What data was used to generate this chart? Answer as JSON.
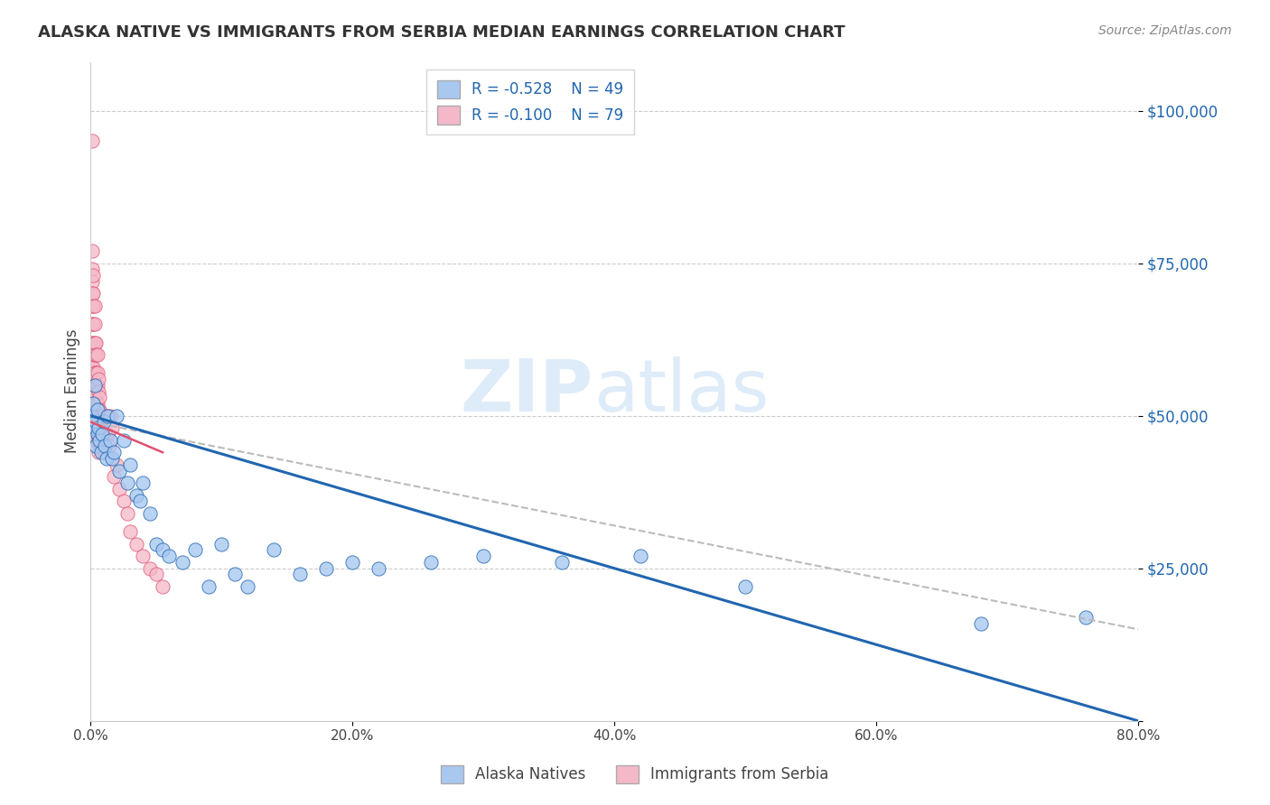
{
  "title": "ALASKA NATIVE VS IMMIGRANTS FROM SERBIA MEDIAN EARNINGS CORRELATION CHART",
  "source": "Source: ZipAtlas.com",
  "ylabel": "Median Earnings",
  "y_ticks": [
    0,
    25000,
    50000,
    75000,
    100000
  ],
  "y_tick_labels": [
    "",
    "$25,000",
    "$50,000",
    "$75,000",
    "$100,000"
  ],
  "x_min": 0.0,
  "x_max": 0.8,
  "y_min": 0,
  "y_max": 108000,
  "legend_r1": "R = -0.528",
  "legend_n1": "N = 49",
  "legend_r2": "R = -0.100",
  "legend_n2": "N = 79",
  "color_blue": "#a8c8f0",
  "color_pink": "#f5b8c8",
  "color_blue_line": "#2166b0",
  "color_pink_line": "#e05070",
  "color_gray_dash": "#bbbbbb",
  "alaska_x": [
    0.001,
    0.002,
    0.003,
    0.003,
    0.004,
    0.004,
    0.005,
    0.005,
    0.006,
    0.007,
    0.008,
    0.009,
    0.01,
    0.011,
    0.012,
    0.013,
    0.015,
    0.016,
    0.018,
    0.02,
    0.022,
    0.025,
    0.028,
    0.03,
    0.035,
    0.038,
    0.04,
    0.045,
    0.05,
    0.055,
    0.06,
    0.07,
    0.08,
    0.09,
    0.1,
    0.11,
    0.12,
    0.14,
    0.16,
    0.18,
    0.2,
    0.22,
    0.26,
    0.3,
    0.36,
    0.42,
    0.5,
    0.68,
    0.76
  ],
  "alaska_y": [
    50000,
    52000,
    55000,
    48000,
    49000,
    45000,
    51000,
    47000,
    48000,
    46000,
    44000,
    47000,
    49000,
    45000,
    43000,
    50000,
    46000,
    43000,
    44000,
    50000,
    41000,
    46000,
    39000,
    42000,
    37000,
    36000,
    39000,
    34000,
    29000,
    28000,
    27000,
    26000,
    28000,
    22000,
    29000,
    24000,
    22000,
    28000,
    24000,
    25000,
    26000,
    25000,
    26000,
    27000,
    26000,
    27000,
    22000,
    16000,
    17000
  ],
  "serbia_x": [
    0.001,
    0.001,
    0.001,
    0.001,
    0.001,
    0.001,
    0.001,
    0.001,
    0.001,
    0.001,
    0.002,
    0.002,
    0.002,
    0.002,
    0.002,
    0.002,
    0.002,
    0.002,
    0.002,
    0.002,
    0.003,
    0.003,
    0.003,
    0.003,
    0.003,
    0.003,
    0.003,
    0.003,
    0.003,
    0.003,
    0.004,
    0.004,
    0.004,
    0.004,
    0.004,
    0.004,
    0.004,
    0.004,
    0.005,
    0.005,
    0.005,
    0.005,
    0.005,
    0.005,
    0.005,
    0.006,
    0.006,
    0.006,
    0.006,
    0.006,
    0.006,
    0.007,
    0.007,
    0.007,
    0.007,
    0.008,
    0.008,
    0.008,
    0.009,
    0.009,
    0.01,
    0.01,
    0.011,
    0.012,
    0.013,
    0.014,
    0.015,
    0.016,
    0.018,
    0.02,
    0.022,
    0.025,
    0.028,
    0.03,
    0.035,
    0.04,
    0.045,
    0.05,
    0.055
  ],
  "serbia_y": [
    95000,
    77000,
    74000,
    72000,
    70000,
    68000,
    65000,
    62000,
    60000,
    58000,
    73000,
    70000,
    68000,
    65000,
    62000,
    60000,
    58000,
    56000,
    54000,
    52000,
    68000,
    65000,
    62000,
    60000,
    57000,
    55000,
    53000,
    51000,
    49000,
    47000,
    62000,
    60000,
    57000,
    55000,
    52000,
    50000,
    48000,
    46000,
    60000,
    57000,
    55000,
    52000,
    50000,
    48000,
    46000,
    56000,
    54000,
    51000,
    49000,
    47000,
    44000,
    53000,
    51000,
    48000,
    46000,
    50000,
    48000,
    45000,
    47000,
    44000,
    49000,
    47000,
    44000,
    50000,
    47000,
    45000,
    50000,
    48000,
    40000,
    42000,
    38000,
    36000,
    34000,
    31000,
    29000,
    27000,
    25000,
    24000,
    22000
  ],
  "alaska_trend_x": [
    0.0,
    0.8
  ],
  "alaska_trend_y": [
    50000,
    0
  ],
  "serbia_pink_trend_x": [
    0.0,
    0.055
  ],
  "serbia_pink_trend_y": [
    49000,
    44000
  ],
  "serbia_gray_trend_x": [
    0.0,
    0.8
  ],
  "serbia_gray_trend_y": [
    49000,
    15000
  ]
}
